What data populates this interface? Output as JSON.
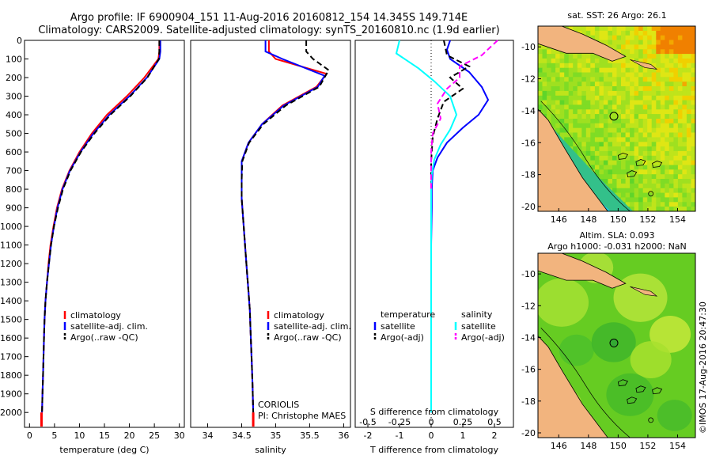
{
  "header": {
    "title_line1": "Argo profile: IF 6900904_151 11-Aug-2016 20160812_154 14.345S 149.714E",
    "title_line2": "Climatology: CARS2009. Satellite-adjusted climatology: synTS_20160810.nc (1.9d earlier)"
  },
  "chart_data": [
    {
      "type": "line",
      "panel": "temperature",
      "xlabel": "temperature (deg C)",
      "xlim": [
        -1,
        31
      ],
      "xticks": [
        0,
        5,
        10,
        15,
        20,
        25,
        30
      ],
      "ylim": [
        2080,
        0
      ],
      "yticks": [
        0,
        100,
        200,
        300,
        400,
        500,
        600,
        700,
        800,
        900,
        1000,
        1100,
        1200,
        1300,
        1400,
        1500,
        1600,
        1700,
        1800,
        1900,
        2000
      ],
      "series": [
        {
          "name": "climatology",
          "color": "#ff0000",
          "style": "solid",
          "x": [
            26,
            26,
            25.8,
            23,
            19.5,
            15.5,
            12.5,
            10,
            8,
            6.5,
            5.5,
            4.8,
            4.2,
            3.8,
            3.5,
            3.2,
            3,
            2.9,
            2.8,
            2.7,
            2.6,
            2.5
          ],
          "y": [
            0,
            60,
            100,
            200,
            300,
            400,
            500,
            600,
            700,
            800,
            900,
            1000,
            1100,
            1200,
            1300,
            1400,
            1500,
            1600,
            1700,
            1800,
            1900,
            2000
          ]
        },
        {
          "name": "satellite-adj. clim.",
          "color": "#0000ff",
          "style": "solid",
          "x": [
            26.2,
            26.2,
            26,
            23.5,
            20,
            16,
            12.8,
            10.2,
            8.1,
            6.6,
            5.6,
            4.9,
            4.3,
            3.9,
            3.5,
            3.2,
            3,
            2.9,
            2.8,
            2.7,
            2.6,
            2.5
          ],
          "y": [
            0,
            60,
            100,
            200,
            300,
            400,
            500,
            600,
            700,
            800,
            900,
            1000,
            1100,
            1200,
            1300,
            1400,
            1500,
            1600,
            1700,
            1800,
            1900,
            2000
          ]
        },
        {
          "name": "Argo(..raw -QC)",
          "color": "#000000",
          "style": "dashed",
          "x": [
            26,
            26,
            25.9,
            23.6,
            20.2,
            16.2,
            13,
            10.3,
            8.2,
            6.7,
            5.7,
            4.9,
            4.3,
            3.9,
            3.5,
            3.2,
            3,
            2.9,
            2.8,
            2.7,
            2.6,
            2.5
          ],
          "y": [
            0,
            60,
            100,
            200,
            300,
            400,
            500,
            600,
            700,
            800,
            900,
            1000,
            1100,
            1200,
            1300,
            1400,
            1500,
            1600,
            1700,
            1800,
            1900,
            2000
          ]
        }
      ],
      "bottom_marker": {
        "color": "#ff0000",
        "x": 2.4
      }
    },
    {
      "type": "line",
      "panel": "salinity",
      "xlabel": "salinity",
      "xlim": [
        33.75,
        36.1
      ],
      "xticks": [
        34,
        34.5,
        35,
        35.5,
        36
      ],
      "ylim": [
        2080,
        0
      ],
      "series": [
        {
          "name": "climatology",
          "color": "#ff0000",
          "style": "solid",
          "x": [
            34.9,
            34.9,
            35,
            35.75,
            35.6,
            35.1,
            34.8,
            34.6,
            34.5,
            34.5,
            34.5,
            34.52,
            34.54,
            34.56,
            34.58,
            34.6,
            34.62,
            34.63,
            34.64,
            34.65,
            34.66,
            34.67
          ],
          "y": [
            0,
            60,
            100,
            180,
            250,
            350,
            450,
            550,
            650,
            750,
            850,
            950,
            1050,
            1150,
            1250,
            1350,
            1450,
            1550,
            1650,
            1750,
            1850,
            2000
          ]
        },
        {
          "name": "satellite-adj. clim.",
          "color": "#0000ff",
          "style": "solid",
          "x": [
            34.85,
            34.85,
            35.1,
            35.72,
            35.62,
            35.12,
            34.8,
            34.6,
            34.5,
            34.5,
            34.5,
            34.52,
            34.54,
            34.56,
            34.58,
            34.6,
            34.62,
            34.63,
            34.64,
            34.65,
            34.66,
            34.67
          ],
          "y": [
            0,
            60,
            100,
            190,
            250,
            350,
            450,
            550,
            650,
            750,
            850,
            950,
            1050,
            1150,
            1250,
            1350,
            1450,
            1550,
            1650,
            1750,
            1850,
            2000
          ]
        },
        {
          "name": "Argo(..raw -QC)",
          "color": "#000000",
          "style": "dashed",
          "x": [
            35.45,
            35.45,
            35.55,
            35.78,
            35.64,
            35.15,
            34.82,
            34.61,
            34.51,
            34.5,
            34.5,
            34.52,
            34.54,
            34.56,
            34.58,
            34.6,
            34.62,
            34.63,
            34.64,
            34.65,
            34.66,
            34.67
          ],
          "y": [
            0,
            60,
            100,
            160,
            250,
            350,
            450,
            550,
            650,
            750,
            850,
            950,
            1050,
            1150,
            1250,
            1350,
            1450,
            1550,
            1650,
            1750,
            1850,
            2000
          ]
        }
      ],
      "bottom_marker": {
        "color": "#ff0000",
        "x": 34.67
      },
      "annotations": [
        "CORIOLIS",
        "PI: Christophe MAES"
      ]
    },
    {
      "type": "line",
      "panel": "difference",
      "xlabel_top": "S difference from climatology",
      "xlabel_bottom": "T difference from climatology",
      "xlim_T": [
        -2.4,
        2.6
      ],
      "xticks_T": [
        -2,
        -1,
        0,
        1,
        2
      ],
      "xticks_S": [
        -0.5,
        -0.25,
        0,
        0.25,
        0.5
      ],
      "xticklabels_S": [
        "-0.5",
        "-0.25",
        "0",
        "0.25",
        "0.5"
      ],
      "ylim": [
        2080,
        0
      ],
      "legend_titles": {
        "left": "temperature",
        "right": "salinity"
      },
      "series": [
        {
          "name": "satellite",
          "group": "temperature",
          "color": "#0000ff",
          "style": "solid",
          "x": [
            0.6,
            0.5,
            0.6,
            1.2,
            1.6,
            1.8,
            1.5,
            1.0,
            0.5,
            0.2,
            0.05,
            0.02,
            0.02,
            0.01,
            0,
            0,
            0,
            0,
            0,
            0,
            0,
            0
          ],
          "y": [
            0,
            50,
            100,
            170,
            250,
            320,
            400,
            470,
            550,
            630,
            700,
            800,
            900,
            1000,
            1100,
            1200,
            1300,
            1400,
            1500,
            1600,
            1800,
            2000
          ]
        },
        {
          "name": "Argo(-adj)",
          "group": "temperature",
          "color": "#000000",
          "style": "dashed",
          "x": [
            0.4,
            0.5,
            1.2,
            0.6,
            1.0,
            0.4,
            0.2,
            0.05,
            0,
            0,
            0
          ],
          "y": [
            0,
            80,
            140,
            200,
            260,
            330,
            420,
            520,
            650,
            800,
            1000
          ]
        },
        {
          "name": "satellite",
          "group": "salinity",
          "color": "#00ffff",
          "style": "solid",
          "x": [
            -1,
            -1.1,
            -0.4,
            0.1,
            0.6,
            0.8,
            0.6,
            0.3,
            0.1,
            0.02,
            0,
            0,
            0,
            0,
            0,
            0,
            0,
            0,
            0
          ],
          "y": [
            0,
            70,
            150,
            220,
            300,
            400,
            480,
            560,
            640,
            720,
            800,
            900,
            1000,
            1200,
            1400,
            1600,
            1700,
            1850,
            2000
          ]
        },
        {
          "name": "Argo(-adj)",
          "group": "salinity",
          "color": "#ff00ff",
          "style": "dashed",
          "x": [
            2.1,
            1.6,
            0.9,
            0.9,
            0.5,
            0.2,
            0.3,
            0.05,
            0,
            0,
            0
          ],
          "y": [
            0,
            80,
            140,
            200,
            260,
            340,
            420,
            500,
            600,
            700,
            800
          ]
        }
      ]
    },
    {
      "type": "heatmap",
      "panel": "map-sst",
      "title": "sat. SST: 26 Argo: 26.1",
      "xticks": [
        146,
        148,
        150,
        152,
        154
      ],
      "yticks": [
        -10,
        -12,
        -14,
        -16,
        -18,
        -20
      ],
      "xlim": [
        144.6,
        155.2
      ],
      "ylim": [
        -20.3,
        -8.7
      ],
      "argo_position": {
        "lon": 149.714,
        "lat": -14.345
      },
      "markers": [
        {
          "lon": 152.2,
          "lat": -19.2
        }
      ]
    },
    {
      "type": "heatmap",
      "panel": "map-sla",
      "title_line1": "Altim. SLA: 0.093",
      "title_line2": "Argo h1000: -0.031 h2000: NaN",
      "xticks": [
        146,
        148,
        150,
        152,
        154
      ],
      "yticks": [
        -10,
        -12,
        -14,
        -16,
        -18,
        -20
      ],
      "xlim": [
        144.6,
        155.2
      ],
      "ylim": [
        -20.3,
        -8.7
      ],
      "argo_position": {
        "lon": 149.714,
        "lat": -14.345
      },
      "markers": [
        {
          "lon": 152.2,
          "lat": -19.2
        }
      ]
    }
  ],
  "credit": "©IMOS 17-Aug-2016 20:47:30"
}
